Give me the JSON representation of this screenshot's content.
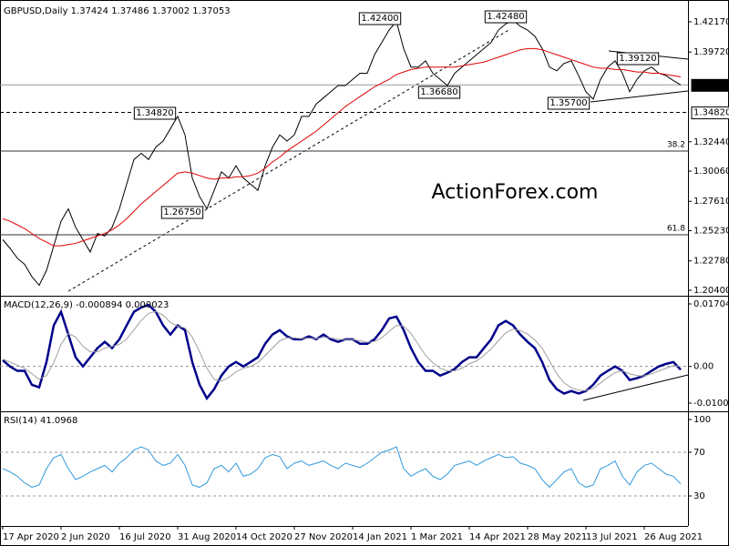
{
  "chart_data": [
    {
      "type": "line",
      "title": "GBPUSD,Daily  1.37424 1.37486 1.37002 1.37053",
      "watermark": "ActionForex.com",
      "last": 1.37053,
      "ylim": [
        1.201,
        1.4357
      ],
      "yticks": [
        {
          "value": 1.4217,
          "label": "1.42170"
        },
        {
          "value": 1.3972,
          "label": "1.39720"
        },
        {
          "value": 1.3244,
          "label": "1.32440"
        },
        {
          "value": 1.3006,
          "label": "1.30060"
        },
        {
          "value": 1.2761,
          "label": "1.27610"
        },
        {
          "value": 1.2523,
          "label": "1.25230"
        },
        {
          "value": 1.2278,
          "label": "1.22780"
        },
        {
          "value": 1.204,
          "label": "1.20400"
        }
      ],
      "levels": [
        {
          "value": 1.3482,
          "label": "1.34820",
          "style": "dashed"
        },
        {
          "value": 1.3169,
          "label": "38.2",
          "style": "fib"
        },
        {
          "value": 1.249,
          "label": "61.8",
          "style": "fib"
        }
      ],
      "annotations": [
        "1.42400",
        "1.42480",
        "1.39120",
        "1.36680",
        "1.35700",
        "1.34820",
        "1.26750"
      ],
      "series": [
        {
          "color": "#000000",
          "values": [
            1.245,
            1.238,
            1.23,
            1.225,
            1.215,
            1.208,
            1.22,
            1.24,
            1.26,
            1.27,
            1.255,
            1.245,
            1.235,
            1.25,
            1.248,
            1.255,
            1.27,
            1.29,
            1.31,
            1.315,
            1.31,
            1.32,
            1.325,
            1.335,
            1.345,
            1.33,
            1.295,
            1.28,
            1.27,
            1.285,
            1.3,
            1.295,
            1.305,
            1.295,
            1.29,
            1.285,
            1.305,
            1.32,
            1.33,
            1.325,
            1.33,
            1.345,
            1.345,
            1.355,
            1.36,
            1.365,
            1.37,
            1.37,
            1.375,
            1.38,
            1.38,
            1.395,
            1.405,
            1.415,
            1.422,
            1.4,
            1.385,
            1.385,
            1.39,
            1.38,
            1.375,
            1.37,
            1.38,
            1.385,
            1.39,
            1.395,
            1.4,
            1.405,
            1.415,
            1.42,
            1.423,
            1.418,
            1.415,
            1.41,
            1.4,
            1.385,
            1.382,
            1.388,
            1.39,
            1.378,
            1.365,
            1.359,
            1.375,
            1.385,
            1.39,
            1.38,
            1.365,
            1.375,
            1.382,
            1.385,
            1.38,
            1.378,
            1.374,
            1.3705
          ]
        },
        {
          "color": "#e00000",
          "values": [
            1.262,
            1.26,
            1.257,
            1.254,
            1.25,
            1.246,
            1.243,
            1.24,
            1.24,
            1.241,
            1.242,
            1.244,
            1.246,
            1.248,
            1.25,
            1.253,
            1.257,
            1.262,
            1.268,
            1.274,
            1.279,
            1.284,
            1.289,
            1.294,
            1.299,
            1.3,
            1.299,
            1.297,
            1.295,
            1.294,
            1.295,
            1.295,
            1.296,
            1.296,
            1.297,
            1.299,
            1.303,
            1.308,
            1.312,
            1.317,
            1.321,
            1.325,
            1.329,
            1.333,
            1.338,
            1.343,
            1.348,
            1.353,
            1.357,
            1.361,
            1.365,
            1.369,
            1.372,
            1.375,
            1.379,
            1.381,
            1.383,
            1.384,
            1.385,
            1.385,
            1.385,
            1.385,
            1.385,
            1.386,
            1.387,
            1.388,
            1.389,
            1.391,
            1.393,
            1.395,
            1.397,
            1.399,
            1.4,
            1.4,
            1.399,
            1.397,
            1.395,
            1.393,
            1.391,
            1.389,
            1.387,
            1.385,
            1.384,
            1.384,
            1.383,
            1.383,
            1.382,
            1.381,
            1.381,
            1.38,
            1.38,
            1.379,
            1.378,
            1.377
          ]
        }
      ]
    },
    {
      "type": "line",
      "title": "MACD(12,26,9) -0.000894 0.000023",
      "ylim": [
        -0.01175,
        0.01854
      ],
      "yticks": [
        0.017047,
        {
          "value": 0,
          "label": "0.00"
        },
        -0.010013
      ],
      "reference_lines": [
        0
      ],
      "series": [
        {
          "color": "#00008b",
          "values": [
            0.0017,
            0.0,
            -0.0012,
            -0.0012,
            -0.005,
            -0.0057,
            0.0012,
            0.0112,
            0.0149,
            0.0087,
            0.0025,
            0.0,
            0.0025,
            0.005,
            0.0067,
            0.005,
            0.0074,
            0.0112,
            0.0149,
            0.0161,
            0.0168,
            0.0149,
            0.0112,
            0.0087,
            0.0112,
            0.0099,
            0.0012,
            -0.005,
            -0.0087,
            -0.0062,
            -0.0025,
            0.0,
            0.0012,
            0.0,
            0.0012,
            0.0025,
            0.0062,
            0.0087,
            0.0099,
            0.0082,
            0.0074,
            0.0074,
            0.0082,
            0.0074,
            0.0087,
            0.0074,
            0.0067,
            0.0074,
            0.0074,
            0.0062,
            0.0062,
            0.0074,
            0.0099,
            0.0131,
            0.0136,
            0.0099,
            0.005,
            0.0012,
            -0.0012,
            -0.0012,
            -0.0025,
            -0.0017,
            -0.0007,
            0.0012,
            0.0025,
            0.0025,
            0.005,
            0.0074,
            0.0112,
            0.0124,
            0.0112,
            0.0087,
            0.0067,
            0.005,
            0.0012,
            -0.0037,
            -0.0062,
            -0.0074,
            -0.0067,
            -0.0074,
            -0.0067,
            -0.005,
            -0.0025,
            -0.0012,
            0.0,
            -0.0012,
            -0.0037,
            -0.0032,
            -0.0025,
            -0.0012,
            0.0,
            0.0007,
            0.0012,
            -0.0009
          ]
        },
        {
          "color": "#a0a0a0",
          "values": [
            0.002,
            0.0012,
            0.0003,
            -0.0005,
            -0.002,
            -0.0035,
            -0.0025,
            0.001,
            0.006,
            0.009,
            0.008,
            0.0055,
            0.004,
            0.004,
            0.005,
            0.0055,
            0.006,
            0.0075,
            0.01,
            0.0125,
            0.0145,
            0.015,
            0.014,
            0.012,
            0.011,
            0.0105,
            0.008,
            0.004,
            -0.0005,
            -0.0035,
            -0.004,
            -0.003,
            -0.0015,
            -0.0005,
            0.0,
            0.001,
            0.003,
            0.005,
            0.007,
            0.0078,
            0.0078,
            0.0076,
            0.0077,
            0.0076,
            0.008,
            0.0078,
            0.0074,
            0.0073,
            0.0073,
            0.007,
            0.0066,
            0.0068,
            0.0078,
            0.0095,
            0.0112,
            0.011,
            0.009,
            0.006,
            0.003,
            0.001,
            -0.0005,
            -0.0012,
            -0.0012,
            -0.0005,
            0.0007,
            0.0015,
            0.003,
            0.0048,
            0.007,
            0.0092,
            0.0102,
            0.0098,
            0.0088,
            0.0072,
            0.005,
            0.0015,
            -0.002,
            -0.0045,
            -0.0058,
            -0.0065,
            -0.0066,
            -0.006,
            -0.0045,
            -0.003,
            -0.0017,
            -0.0012,
            -0.002,
            -0.0025,
            -0.0026,
            -0.002,
            -0.0012,
            -0.0005,
            0.0002,
            0.0
          ]
        }
      ]
    },
    {
      "type": "line",
      "title": "RSI(14) 41.0968",
      "ylim": [
        2.5,
        105
      ],
      "yticks": [
        30,
        70,
        100
      ],
      "reference_lines": [
        30,
        70
      ],
      "categories": [
        "17 Apr 2020",
        null,
        null,
        null,
        null,
        null,
        null,
        null,
        "2 Jun 2020",
        null,
        null,
        null,
        null,
        null,
        null,
        null,
        "16 Jul 2020",
        null,
        null,
        null,
        null,
        null,
        null,
        null,
        "31 Aug 2020",
        null,
        null,
        null,
        null,
        null,
        null,
        null,
        "14 Oct 2020",
        null,
        null,
        null,
        null,
        null,
        null,
        null,
        "27 Nov 2020",
        null,
        null,
        null,
        null,
        null,
        null,
        null,
        "14 Jan 2021",
        null,
        null,
        null,
        null,
        null,
        null,
        null,
        "1 Mar 2021",
        null,
        null,
        null,
        null,
        null,
        null,
        null,
        "14 Apr 2021",
        null,
        null,
        null,
        null,
        null,
        null,
        null,
        "28 May 2021",
        null,
        null,
        null,
        null,
        null,
        null,
        null,
        "13 Jul 2021",
        null,
        null,
        null,
        null,
        null,
        null,
        null,
        "26 Aug 2021",
        null,
        null,
        null,
        null,
        null
      ],
      "series": [
        {
          "color": "#3399dd",
          "values": [
            55,
            52,
            48,
            42,
            38,
            40,
            55,
            65,
            68,
            55,
            45,
            48,
            52,
            55,
            58,
            52,
            60,
            65,
            72,
            75,
            72,
            62,
            58,
            60,
            68,
            58,
            40,
            38,
            42,
            55,
            58,
            52,
            60,
            48,
            50,
            55,
            65,
            68,
            66,
            55,
            60,
            62,
            58,
            60,
            62,
            58,
            55,
            60,
            58,
            56,
            60,
            65,
            70,
            72,
            75,
            55,
            48,
            52,
            55,
            48,
            45,
            50,
            58,
            60,
            62,
            58,
            62,
            65,
            68,
            65,
            66,
            60,
            58,
            55,
            45,
            38,
            45,
            52,
            55,
            42,
            38,
            40,
            55,
            58,
            62,
            48,
            40,
            52,
            58,
            60,
            55,
            50,
            48,
            41
          ]
        }
      ]
    }
  ]
}
